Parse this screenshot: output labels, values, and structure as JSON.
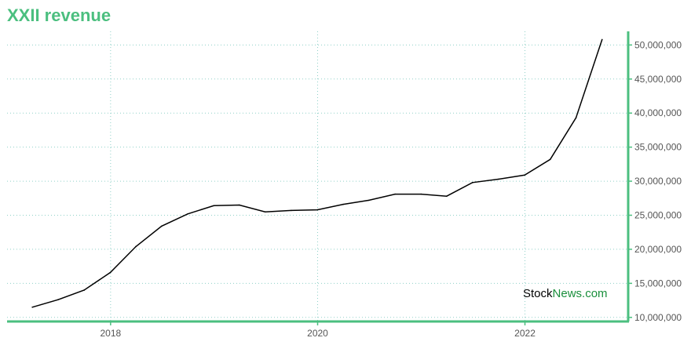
{
  "title": "XXII revenue",
  "watermark": {
    "part1": "Stock",
    "part2": "News.com"
  },
  "colors": {
    "accent": "#4bbf7f",
    "line": "#000000",
    "grid": "#8fd0c8",
    "watermark_dark": "#000000",
    "watermark_green": "#1a8f3c"
  },
  "chart_data": {
    "type": "line",
    "title": "XXII revenue",
    "xlabel": "",
    "ylabel": "",
    "x_ticks": [
      "2018",
      "2020",
      "2022"
    ],
    "y_ticks": [
      "10,000,000",
      "15,000,000",
      "20,000,000",
      "25,000,000",
      "30,000,000",
      "35,000,000",
      "40,000,000",
      "45,000,000",
      "50,000,000"
    ],
    "ylim": [
      10000000,
      52000000
    ],
    "xlim": [
      "2017-01-01",
      "2022-12-31"
    ],
    "y_axis_side": "right",
    "grid": true,
    "series": [
      {
        "values": [
          {
            "x": "2017-03-31",
            "y": 11500000
          },
          {
            "x": "2017-06-30",
            "y": 12600000
          },
          {
            "x": "2017-09-30",
            "y": 14000000
          },
          {
            "x": "2017-12-31",
            "y": 16600000
          },
          {
            "x": "2018-03-31",
            "y": 20400000
          },
          {
            "x": "2018-06-30",
            "y": 23400000
          },
          {
            "x": "2018-09-30",
            "y": 25200000
          },
          {
            "x": "2018-12-31",
            "y": 26400000
          },
          {
            "x": "2019-03-31",
            "y": 26500000
          },
          {
            "x": "2019-06-30",
            "y": 25500000
          },
          {
            "x": "2019-09-30",
            "y": 25700000
          },
          {
            "x": "2019-12-31",
            "y": 25800000
          },
          {
            "x": "2020-03-31",
            "y": 26600000
          },
          {
            "x": "2020-06-30",
            "y": 27200000
          },
          {
            "x": "2020-09-30",
            "y": 28100000
          },
          {
            "x": "2020-12-31",
            "y": 28100000
          },
          {
            "x": "2021-03-31",
            "y": 27800000
          },
          {
            "x": "2021-06-30",
            "y": 29800000
          },
          {
            "x": "2021-09-30",
            "y": 30300000
          },
          {
            "x": "2021-12-31",
            "y": 30900000
          },
          {
            "x": "2022-03-31",
            "y": 33200000
          },
          {
            "x": "2022-06-30",
            "y": 39300000
          },
          {
            "x": "2022-09-30",
            "y": 50800000
          }
        ]
      }
    ]
  }
}
